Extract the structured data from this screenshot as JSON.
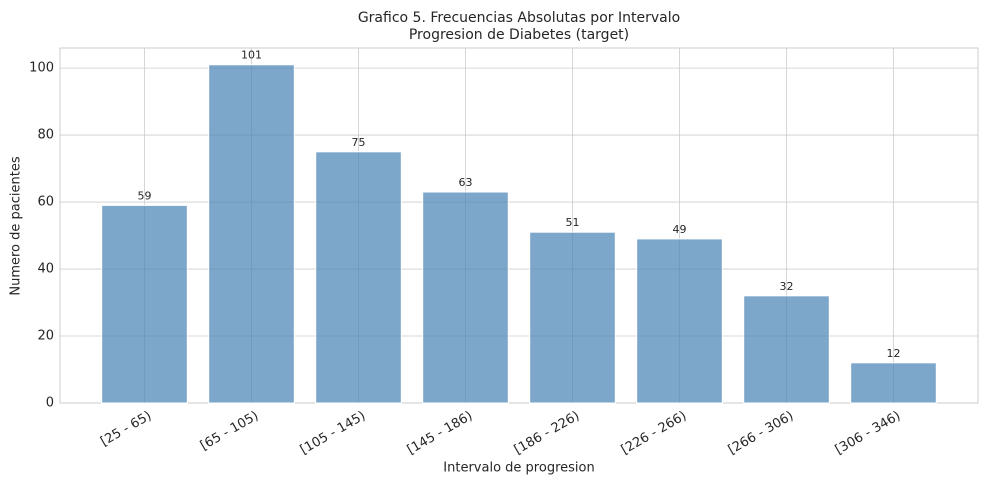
{
  "chart_data": {
    "type": "bar",
    "title": "Grafico 5. Frecuencias Absolutas por Intervalo",
    "subtitle": "Progresion de Diabetes (target)",
    "x_label": "Intervalo de progresion",
    "y_label": "Numero de pacientes",
    "categories": [
      "[25 - 65)",
      "[65 - 105)",
      "[105 - 145)",
      "[145 - 186)",
      "[186 - 226)",
      "[226 - 266)",
      "[266 - 306)",
      "[306 - 346)"
    ],
    "values": [
      59,
      101,
      75,
      63,
      51,
      49,
      32,
      12
    ],
    "color": "#4682b4",
    "ylim": [
      0,
      106
    ],
    "yticks": [
      0,
      20,
      40,
      60,
      80,
      100
    ],
    "grid": true
  }
}
